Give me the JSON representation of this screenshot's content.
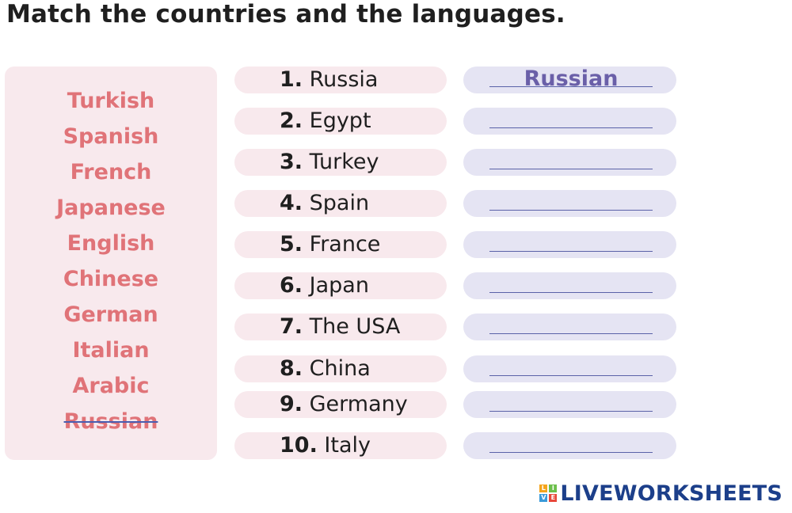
{
  "title": "Match the countries and the languages.",
  "word_bank": [
    {
      "label": "Turkish",
      "used": false
    },
    {
      "label": "Spanish",
      "used": false
    },
    {
      "label": "French",
      "used": false
    },
    {
      "label": "Japanese",
      "used": false
    },
    {
      "label": "English",
      "used": false
    },
    {
      "label": "Chinese",
      "used": false
    },
    {
      "label": "German",
      "used": false
    },
    {
      "label": "Italian",
      "used": false
    },
    {
      "label": "Arabic",
      "used": false
    },
    {
      "label": "Russian",
      "used": true
    }
  ],
  "rows": [
    {
      "number": "1.",
      "country": "Russia",
      "answer": "Russian"
    },
    {
      "number": "2.",
      "country": "Egypt",
      "answer": ""
    },
    {
      "number": "3.",
      "country": "Turkey",
      "answer": ""
    },
    {
      "number": "4.",
      "country": "Spain",
      "answer": ""
    },
    {
      "number": "5.",
      "country": "France",
      "answer": ""
    },
    {
      "number": "6.",
      "country": "Japan",
      "answer": ""
    },
    {
      "number": "7.",
      "country": "The USA",
      "answer": ""
    },
    {
      "number": "8.",
      "country": "China",
      "answer": ""
    },
    {
      "number": "9.",
      "country": "Germany",
      "answer": ""
    },
    {
      "number": "10.",
      "country": "Italy",
      "answer": ""
    }
  ],
  "logo": {
    "mark_letters": [
      "L",
      "I",
      "V",
      "E"
    ],
    "mark_colors": [
      "#f4a41c",
      "#6cbf4b",
      "#3a9ad9",
      "#e8473a"
    ],
    "text": "LIVEWORKSHEETS",
    "color": "#1c3f8a"
  },
  "colors": {
    "bank_text": "#e07378",
    "panel_pink": "#f8e9ed",
    "panel_lavender": "#e5e4f3",
    "answer_text": "#6a5fa8"
  }
}
